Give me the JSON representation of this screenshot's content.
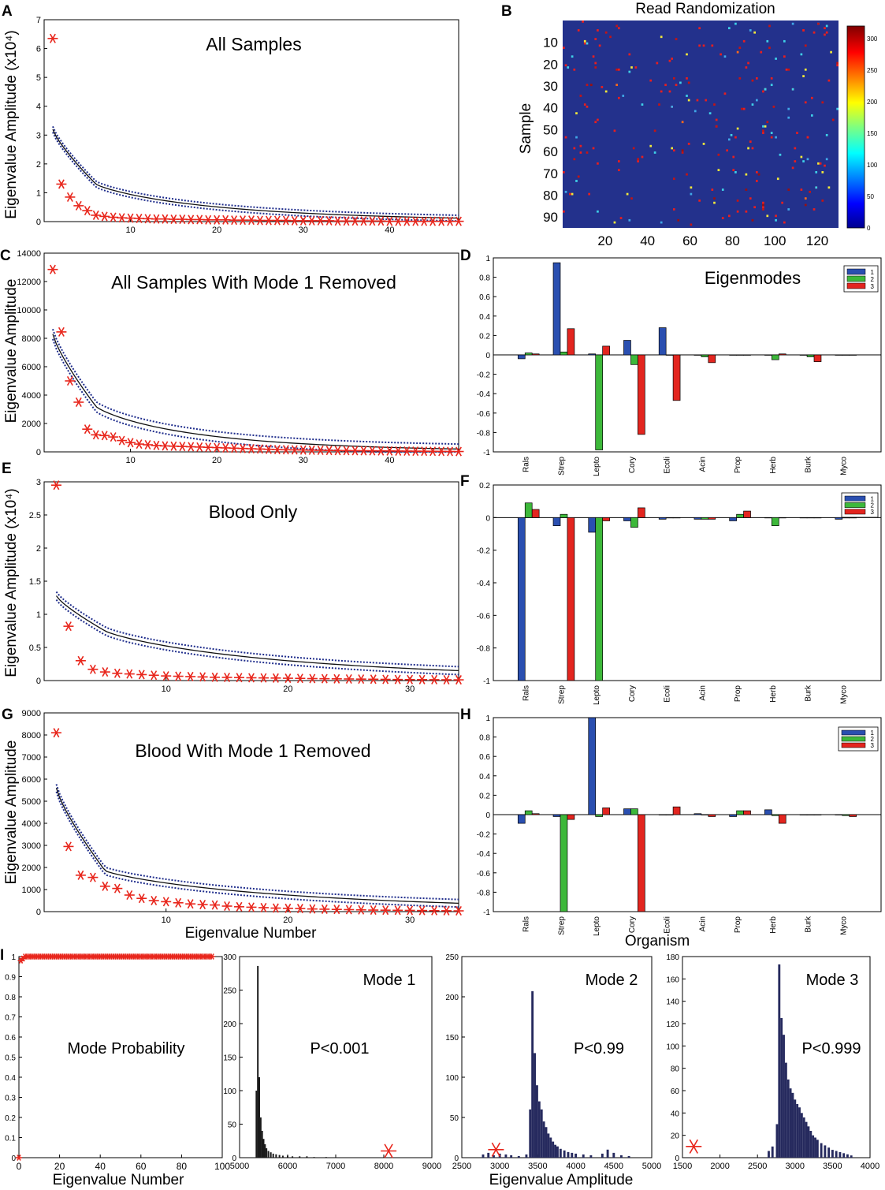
{
  "chart_data": [
    {
      "id": "A",
      "panel_label": "A",
      "type": "scatter",
      "title": "All Samples",
      "xlabel": "",
      "ylabel": "Eigenvalue Amplitude (x10⁴)",
      "xlim": [
        0,
        48
      ],
      "ylim": [
        0,
        7
      ],
      "xticks": [
        10,
        20,
        30,
        40
      ],
      "yticks": [
        0,
        1,
        2,
        3,
        4,
        5,
        6,
        7
      ],
      "observed_values": [
        6.35,
        1.3,
        0.85,
        0.55,
        0.38,
        0.22,
        0.18,
        0.15,
        0.13,
        0.12,
        0.11,
        0.1,
        0.09,
        0.09,
        0.08,
        0.08,
        0.07,
        0.07,
        0.06,
        0.06,
        0.06,
        0.05,
        0.05,
        0.05,
        0.04,
        0.04,
        0.04,
        0.04,
        0.03,
        0.03,
        0.03,
        0.03,
        0.03,
        0.02,
        0.02,
        0.02,
        0.02,
        0.02,
        0.02,
        0.01,
        0.01,
        0.01,
        0.01,
        0.01,
        0.01,
        0.01,
        0.01,
        0.01
      ],
      "random_curve": {
        "start": 3.2,
        "knee_x": 6,
        "knee_y": 1.3,
        "end": 0.12,
        "band": 0.1
      },
      "series": [
        {
          "name": "Observed eigenvalues",
          "color": "#e8261c"
        },
        {
          "name": "Randomized mean",
          "color": "#111111"
        },
        {
          "name": "Randomized bounds",
          "color": "#1f2d8c"
        }
      ]
    },
    {
      "id": "B",
      "panel_label": "B",
      "type": "heatmap",
      "title": "Read Randomization",
      "xlabel": "",
      "ylabel": "Sample",
      "xlim": [
        0,
        130
      ],
      "ylim": [
        0,
        95
      ],
      "xticks": [
        20,
        40,
        60,
        80,
        100,
        120
      ],
      "yticks": [
        10,
        20,
        30,
        40,
        50,
        60,
        70,
        80,
        90
      ],
      "colorbar_ticks": [
        0,
        50,
        100,
        150,
        200,
        250,
        300
      ],
      "clim": [
        0,
        320
      ]
    },
    {
      "id": "C",
      "panel_label": "C",
      "type": "scatter",
      "title": "All Samples With Mode 1 Removed",
      "xlabel": "",
      "ylabel": "Eigenvalue Amplitude",
      "xlim": [
        0,
        48
      ],
      "ylim": [
        0,
        14000
      ],
      "xticks": [
        10,
        20,
        30,
        40
      ],
      "yticks": [
        0,
        2000,
        4000,
        6000,
        8000,
        10000,
        12000,
        14000
      ],
      "observed_values": [
        12850,
        8450,
        5000,
        3500,
        1600,
        1200,
        1150,
        1050,
        800,
        650,
        550,
        500,
        450,
        420,
        400,
        380,
        360,
        340,
        320,
        300,
        280,
        260,
        240,
        220,
        200,
        180,
        160,
        150,
        140,
        130,
        120,
        110,
        100,
        95,
        90,
        85,
        80,
        75,
        70,
        65,
        60,
        55,
        50,
        45,
        40,
        35,
        30,
        25
      ],
      "random_curve": {
        "start": 8300,
        "knee_x": 6,
        "knee_y": 3200,
        "end": 200,
        "band": 350
      },
      "series": [
        {
          "name": "Observed eigenvalues",
          "color": "#e8261c"
        },
        {
          "name": "Randomized mean",
          "color": "#111111"
        },
        {
          "name": "Randomized bounds",
          "color": "#1f2d8c"
        }
      ]
    },
    {
      "id": "D",
      "panel_label": "D",
      "type": "bar",
      "title": "Eigenmodes",
      "categories": [
        "Rals",
        "Strep",
        "Lepto",
        "Cory",
        "Ecoli",
        "Acin",
        "Prop",
        "Herb",
        "Burk",
        "Myco"
      ],
      "series": [
        {
          "name": "1",
          "color": "#2a4fb0",
          "values": [
            -0.04,
            0.95,
            0.01,
            0.15,
            0.28,
            0.0,
            0.0,
            0.0,
            0.0,
            0.0
          ]
        },
        {
          "name": "2",
          "color": "#3db83a",
          "values": [
            0.02,
            0.03,
            -0.98,
            -0.1,
            0.0,
            -0.02,
            0.0,
            -0.05,
            -0.02,
            0.0
          ]
        },
        {
          "name": "3",
          "color": "#e3251f",
          "values": [
            0.01,
            0.27,
            0.09,
            -0.82,
            -0.47,
            -0.08,
            0.0,
            0.01,
            -0.07,
            0.0
          ]
        }
      ],
      "ylim": [
        -1,
        1
      ],
      "yticks": [
        -1,
        -0.8,
        -0.6,
        -0.4,
        -0.2,
        0,
        0.2,
        0.4,
        0.6,
        0.8,
        1
      ],
      "xlabel": "",
      "ylabel": "",
      "legend": "top-right"
    },
    {
      "id": "E",
      "panel_label": "E",
      "type": "scatter",
      "title": "Blood Only",
      "xlabel": "",
      "ylabel": "Eigenvalue Amplitude (x10⁴)",
      "xlim": [
        0,
        34
      ],
      "ylim": [
        0,
        3
      ],
      "xticks": [
        10,
        20,
        30
      ],
      "yticks": [
        0,
        0.5,
        1,
        1.5,
        2,
        2.5,
        3
      ],
      "observed_values": [
        2.95,
        0.82,
        0.3,
        0.17,
        0.13,
        0.11,
        0.1,
        0.09,
        0.08,
        0.07,
        0.065,
        0.06,
        0.055,
        0.05,
        0.048,
        0.045,
        0.042,
        0.04,
        0.038,
        0.035,
        0.033,
        0.03,
        0.028,
        0.026,
        0.024,
        0.022,
        0.02,
        0.018,
        0.016,
        0.015,
        0.014,
        0.013,
        0.012,
        0.011
      ],
      "random_curve": {
        "start": 1.28,
        "knee_x": 5,
        "knee_y": 0.75,
        "end": 0.15,
        "band": 0.06
      },
      "series": [
        {
          "name": "Observed eigenvalues",
          "color": "#e8261c"
        },
        {
          "name": "Randomized mean",
          "color": "#111111"
        },
        {
          "name": "Randomized bounds",
          "color": "#1f2d8c"
        }
      ]
    },
    {
      "id": "F",
      "panel_label": "F",
      "type": "bar",
      "title": "",
      "categories": [
        "Rals",
        "Strep",
        "Lepto",
        "Cory",
        "Ecoli",
        "Acin",
        "Prop",
        "Herb",
        "Burk",
        "Myco"
      ],
      "series": [
        {
          "name": "1",
          "color": "#2a4fb0",
          "values": [
            -1.0,
            -0.05,
            -0.09,
            -0.02,
            -0.01,
            -0.01,
            -0.02,
            0.0,
            0.0,
            -0.01
          ]
        },
        {
          "name": "2",
          "color": "#3db83a",
          "values": [
            0.09,
            0.02,
            -1.0,
            -0.06,
            0.0,
            -0.01,
            0.02,
            -0.05,
            0.0,
            0.0
          ]
        },
        {
          "name": "3",
          "color": "#e3251f",
          "values": [
            0.05,
            -1.0,
            -0.02,
            0.06,
            0.0,
            -0.01,
            0.04,
            0.0,
            0.0,
            0.0
          ]
        }
      ],
      "ylim": [
        -1,
        0.2
      ],
      "yticks": [
        -1,
        -0.8,
        -0.6,
        -0.4,
        -0.2,
        0,
        0.2
      ],
      "xlabel": "",
      "ylabel": "",
      "legend": "top-right"
    },
    {
      "id": "G",
      "panel_label": "G",
      "type": "scatter",
      "title": "Blood With Mode 1 Removed",
      "xlabel": "Eigenvalue Number",
      "ylabel": "Eigenvalue Amplitude",
      "xlim": [
        0,
        34
      ],
      "ylim": [
        0,
        9000
      ],
      "xticks": [
        10,
        20,
        30
      ],
      "yticks": [
        0,
        1000,
        2000,
        3000,
        4000,
        5000,
        6000,
        7000,
        8000,
        9000
      ],
      "observed_values": [
        8100,
        2950,
        1650,
        1550,
        1150,
        1050,
        750,
        600,
        500,
        450,
        400,
        350,
        320,
        300,
        250,
        220,
        200,
        180,
        160,
        150,
        140,
        120,
        110,
        100,
        90,
        80,
        70,
        65,
        60,
        55,
        50,
        45,
        40,
        35
      ],
      "random_curve": {
        "start": 5600,
        "knee_x": 5,
        "knee_y": 1850,
        "end": 380,
        "band": 170
      },
      "series": [
        {
          "name": "Observed eigenvalues",
          "color": "#e8261c"
        },
        {
          "name": "Randomized mean",
          "color": "#111111"
        },
        {
          "name": "Randomized bounds",
          "color": "#1f2d8c"
        }
      ]
    },
    {
      "id": "H",
      "panel_label": "H",
      "type": "bar",
      "title": "",
      "categories": [
        "Rals",
        "Strep",
        "Lepto",
        "Cory",
        "Ecoli",
        "Acin",
        "Prop",
        "Herb",
        "Burk",
        "Myco"
      ],
      "series": [
        {
          "name": "1",
          "color": "#2a4fb0",
          "values": [
            -0.09,
            -0.02,
            1.0,
            0.06,
            0.0,
            0.01,
            -0.02,
            0.05,
            0.0,
            0.0
          ]
        },
        {
          "name": "2",
          "color": "#3db83a",
          "values": [
            0.04,
            -1.0,
            -0.02,
            0.06,
            0.0,
            0.0,
            0.04,
            -0.01,
            0.0,
            -0.01
          ]
        },
        {
          "name": "3",
          "color": "#e3251f",
          "values": [
            0.01,
            -0.05,
            0.07,
            -1.0,
            0.08,
            -0.02,
            0.04,
            -0.09,
            0.0,
            -0.02
          ]
        }
      ],
      "ylim": [
        -1,
        1
      ],
      "yticks": [
        -1,
        -0.8,
        -0.6,
        -0.4,
        -0.2,
        0,
        0.2,
        0.4,
        0.6,
        0.8,
        1
      ],
      "xlabel": "Organism",
      "ylabel": "",
      "legend": "top-right"
    },
    {
      "id": "I1",
      "panel_label": "I",
      "type": "scatter",
      "title": "Mode Probability",
      "xlabel": "Eigenvalue Number",
      "ylabel": "",
      "xlim": [
        0,
        100
      ],
      "ylim": [
        0,
        1
      ],
      "xticks": [
        0,
        20,
        40,
        60,
        80,
        100
      ],
      "yticks": [
        0,
        0.1,
        0.2,
        0.3,
        0.4,
        0.5,
        0.6,
        0.7,
        0.8,
        0.9,
        1
      ],
      "probability": {
        "first": 0.0,
        "second": 0.98,
        "third": 0.99,
        "rest": 1.0,
        "count": 96
      },
      "color": "#e8261c"
    },
    {
      "id": "I2",
      "type": "histogram",
      "title": "Mode 1",
      "annotation": "P<0.001",
      "xlabel": "",
      "xlim": [
        5000,
        9000
      ],
      "ylim": [
        0,
        300
      ],
      "xticks": [
        5000,
        6000,
        7000,
        8000,
        9000
      ],
      "yticks": [
        0,
        50,
        100,
        150,
        200,
        250,
        300
      ],
      "bins": [
        [
          5350,
          100
        ],
        [
          5380,
          286
        ],
        [
          5410,
          120
        ],
        [
          5440,
          60
        ],
        [
          5470,
          40
        ],
        [
          5500,
          28
        ],
        [
          5530,
          20
        ],
        [
          5560,
          14
        ],
        [
          5600,
          10
        ],
        [
          5650,
          8
        ],
        [
          5700,
          6
        ],
        [
          5760,
          5
        ],
        [
          5830,
          4
        ],
        [
          5900,
          3
        ],
        [
          6000,
          3
        ],
        [
          6100,
          2
        ],
        [
          6250,
          2
        ],
        [
          6400,
          2
        ],
        [
          6550,
          1
        ],
        [
          6800,
          1
        ]
      ],
      "observed": 8100,
      "observed_y": 10,
      "bar_color": "#1a1a1a"
    },
    {
      "id": "I3",
      "type": "histogram",
      "title": "Mode 2",
      "annotation": "P<0.99",
      "xlabel": "Eigenvalue Amplitude",
      "xlim": [
        2500,
        5000
      ],
      "ylim": [
        0,
        250
      ],
      "xticks": [
        2500,
        3000,
        3500,
        4000,
        4500,
        5000
      ],
      "yticks": [
        0,
        50,
        100,
        150,
        200,
        250
      ],
      "bins": [
        [
          2780,
          4
        ],
        [
          2850,
          6
        ],
        [
          2920,
          3
        ],
        [
          3000,
          5
        ],
        [
          3080,
          4
        ],
        [
          3150,
          3
        ],
        [
          3250,
          2
        ],
        [
          3350,
          4
        ],
        [
          3400,
          60
        ],
        [
          3430,
          207
        ],
        [
          3460,
          130
        ],
        [
          3490,
          90
        ],
        [
          3520,
          70
        ],
        [
          3550,
          60
        ],
        [
          3580,
          45
        ],
        [
          3610,
          38
        ],
        [
          3640,
          30
        ],
        [
          3670,
          25
        ],
        [
          3700,
          20
        ],
        [
          3730,
          16
        ],
        [
          3760,
          14
        ],
        [
          3800,
          11
        ],
        [
          3850,
          9
        ],
        [
          3900,
          7
        ],
        [
          3950,
          6
        ],
        [
          4000,
          5
        ],
        [
          4100,
          4
        ],
        [
          4200,
          3
        ],
        [
          4350,
          5
        ],
        [
          4420,
          10
        ],
        [
          4500,
          6
        ],
        [
          4600,
          3
        ],
        [
          4700,
          2
        ]
      ],
      "observed": 2950,
      "observed_y": 10,
      "bar_color": "#262a5e"
    },
    {
      "id": "I4",
      "type": "histogram",
      "title": "Mode 3",
      "annotation": "P<0.999",
      "xlabel": "",
      "xlim": [
        1500,
        4000
      ],
      "ylim": [
        0,
        180
      ],
      "xticks": [
        1500,
        2000,
        2500,
        3000,
        3500,
        4000
      ],
      "yticks": [
        0,
        20,
        40,
        60,
        80,
        100,
        120,
        140,
        160,
        180
      ],
      "bins": [
        [
          2650,
          6
        ],
        [
          2700,
          10
        ],
        [
          2760,
          30
        ],
        [
          2790,
          173
        ],
        [
          2820,
          125
        ],
        [
          2850,
          110
        ],
        [
          2880,
          85
        ],
        [
          2910,
          70
        ],
        [
          2940,
          62
        ],
        [
          2970,
          58
        ],
        [
          3000,
          52
        ],
        [
          3030,
          48
        ],
        [
          3060,
          45
        ],
        [
          3090,
          40
        ],
        [
          3120,
          36
        ],
        [
          3150,
          32
        ],
        [
          3180,
          28
        ],
        [
          3210,
          24
        ],
        [
          3240,
          20
        ],
        [
          3270,
          18
        ],
        [
          3300,
          16
        ],
        [
          3350,
          13
        ],
        [
          3400,
          11
        ],
        [
          3450,
          9
        ],
        [
          3500,
          7
        ],
        [
          3550,
          6
        ],
        [
          3600,
          5
        ],
        [
          3650,
          4
        ],
        [
          3700,
          3
        ],
        [
          3750,
          2
        ]
      ],
      "observed": 1650,
      "observed_y": 10,
      "bar_color": "#262a5e"
    }
  ]
}
